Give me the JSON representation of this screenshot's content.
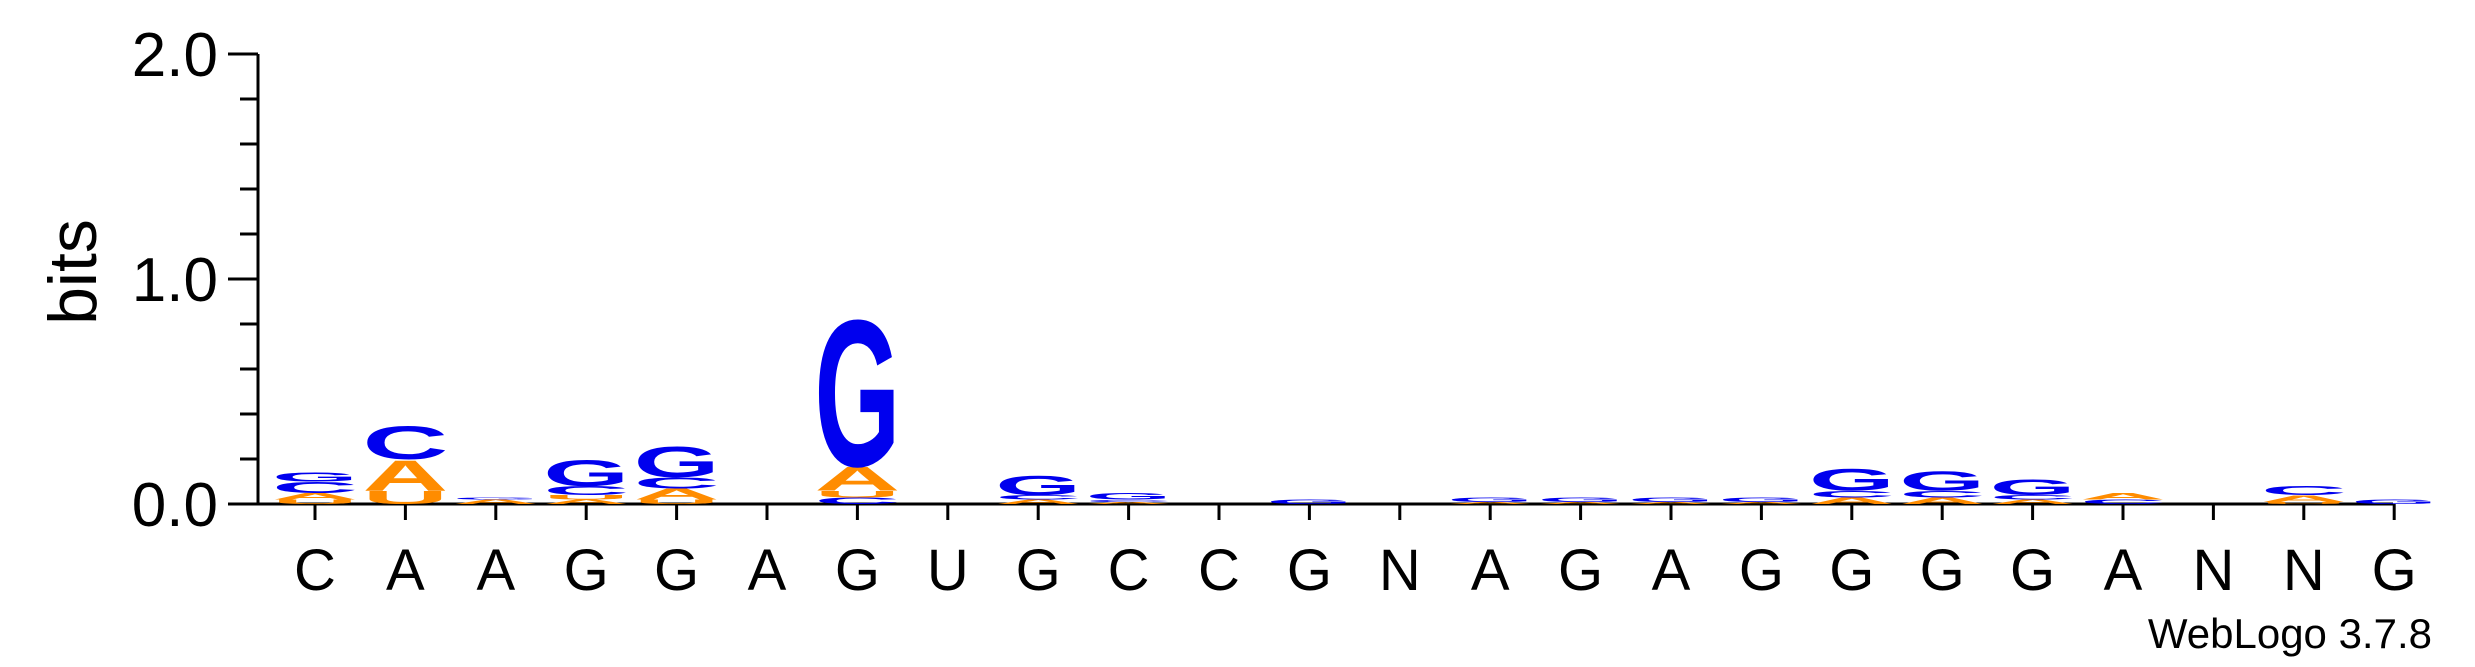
{
  "chart_data": {
    "type": "sequence-logo",
    "ylabel": "bits",
    "ylim": [
      0,
      2.0
    ],
    "yticks": [
      "0.0",
      "1.0",
      "2.0"
    ],
    "categories": [
      "C",
      "A",
      "A",
      "G",
      "G",
      "A",
      "G",
      "U",
      "G",
      "C",
      "C",
      "G",
      "N",
      "A",
      "G",
      "A",
      "G",
      "G",
      "G",
      "G",
      "A",
      "N",
      "N",
      "G"
    ],
    "colors": {
      "G": "#0000ee",
      "C": "#0000ee",
      "A": "#ff8c00",
      "U": "#ff8c00"
    },
    "positions": [
      {
        "stack": [
          {
            "base": "U",
            "bits": 0.02
          },
          {
            "base": "A",
            "bits": 0.03
          },
          {
            "base": "C",
            "bits": 0.05
          },
          {
            "base": "G",
            "bits": 0.04
          }
        ]
      },
      {
        "stack": [
          {
            "base": "U",
            "bits": 0.06
          },
          {
            "base": "A",
            "bits": 0.14
          },
          {
            "base": "C",
            "bits": 0.15
          }
        ]
      },
      {
        "stack": [
          {
            "base": "A",
            "bits": 0.02
          },
          {
            "base": "G",
            "bits": 0.01
          }
        ]
      },
      {
        "stack": [
          {
            "base": "A",
            "bits": 0.02
          },
          {
            "base": "U",
            "bits": 0.02
          },
          {
            "base": "C",
            "bits": 0.04
          },
          {
            "base": "G",
            "bits": 0.12
          }
        ]
      },
      {
        "stack": [
          {
            "base": "U",
            "bits": 0.02
          },
          {
            "base": "A",
            "bits": 0.05
          },
          {
            "base": "C",
            "bits": 0.05
          },
          {
            "base": "G",
            "bits": 0.14
          }
        ]
      },
      {
        "stack": []
      },
      {
        "stack": [
          {
            "base": "C",
            "bits": 0.03
          },
          {
            "base": "U",
            "bits": 0.03
          },
          {
            "base": "A",
            "bits": 0.11
          },
          {
            "base": "G",
            "bits": 0.67
          }
        ]
      },
      {
        "stack": []
      },
      {
        "stack": [
          {
            "base": "A",
            "bits": 0.02
          },
          {
            "base": "C",
            "bits": 0.02
          },
          {
            "base": "G",
            "bits": 0.09
          }
        ]
      },
      {
        "stack": [
          {
            "base": "A",
            "bits": 0.01
          },
          {
            "base": "C",
            "bits": 0.01
          },
          {
            "base": "G",
            "bits": 0.03
          }
        ]
      },
      {
        "stack": []
      },
      {
        "stack": [
          {
            "base": "G",
            "bits": 0.02
          }
        ]
      },
      {
        "stack": []
      },
      {
        "stack": [
          {
            "base": "A",
            "bits": 0.01
          },
          {
            "base": "G",
            "bits": 0.02
          }
        ]
      },
      {
        "stack": [
          {
            "base": "A",
            "bits": 0.01
          },
          {
            "base": "G",
            "bits": 0.02
          }
        ]
      },
      {
        "stack": [
          {
            "base": "A",
            "bits": 0.01
          },
          {
            "base": "G",
            "bits": 0.02
          }
        ]
      },
      {
        "stack": [
          {
            "base": "A",
            "bits": 0.01
          },
          {
            "base": "G",
            "bits": 0.02
          }
        ]
      },
      {
        "stack": [
          {
            "base": "A",
            "bits": 0.03
          },
          {
            "base": "C",
            "bits": 0.03
          },
          {
            "base": "G",
            "bits": 0.1
          }
        ]
      },
      {
        "stack": [
          {
            "base": "A",
            "bits": 0.03
          },
          {
            "base": "C",
            "bits": 0.03
          },
          {
            "base": "G",
            "bits": 0.09
          }
        ]
      },
      {
        "stack": [
          {
            "base": "A",
            "bits": 0.02
          },
          {
            "base": "C",
            "bits": 0.02
          },
          {
            "base": "G",
            "bits": 0.07
          }
        ]
      },
      {
        "stack": [
          {
            "base": "C",
            "bits": 0.02
          },
          {
            "base": "A",
            "bits": 0.03
          }
        ]
      },
      {
        "stack": []
      },
      {
        "stack": [
          {
            "base": "U",
            "bits": 0.01
          },
          {
            "base": "A",
            "bits": 0.03
          },
          {
            "base": "C",
            "bits": 0.04
          }
        ]
      },
      {
        "stack": [
          {
            "base": "G",
            "bits": 0.02
          }
        ]
      }
    ],
    "grid": false,
    "legend": "none"
  },
  "footer": {
    "credit": "WebLogo 3.7.8"
  }
}
